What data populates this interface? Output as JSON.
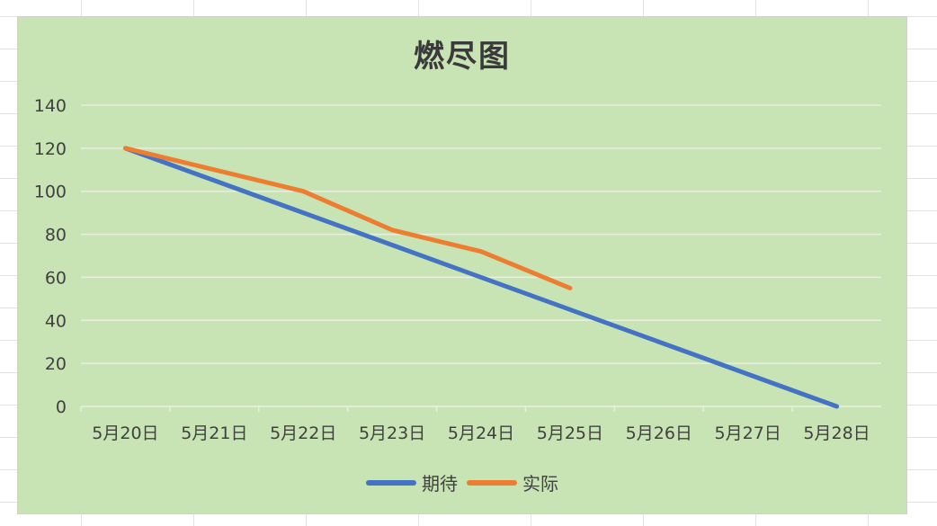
{
  "chart_data": {
    "type": "line",
    "title": "燃尽图",
    "xlabel": "",
    "ylabel": "",
    "categories": [
      "5月20日",
      "5月21日",
      "5月22日",
      "5月23日",
      "5月24日",
      "5月25日",
      "5月26日",
      "5月27日",
      "5月28日"
    ],
    "ylim": [
      0,
      140
    ],
    "yticks": [
      0,
      20,
      40,
      60,
      80,
      100,
      120,
      140
    ],
    "grid": true,
    "legend_position": "bottom",
    "series": [
      {
        "name": "期待",
        "color": "#4472c4",
        "values": [
          120,
          105,
          90,
          75,
          60,
          45,
          30,
          15,
          0
        ]
      },
      {
        "name": "实际",
        "color": "#ed7d31",
        "values": [
          120,
          110,
          100,
          82,
          72,
          55,
          null,
          null,
          null
        ]
      }
    ]
  }
}
